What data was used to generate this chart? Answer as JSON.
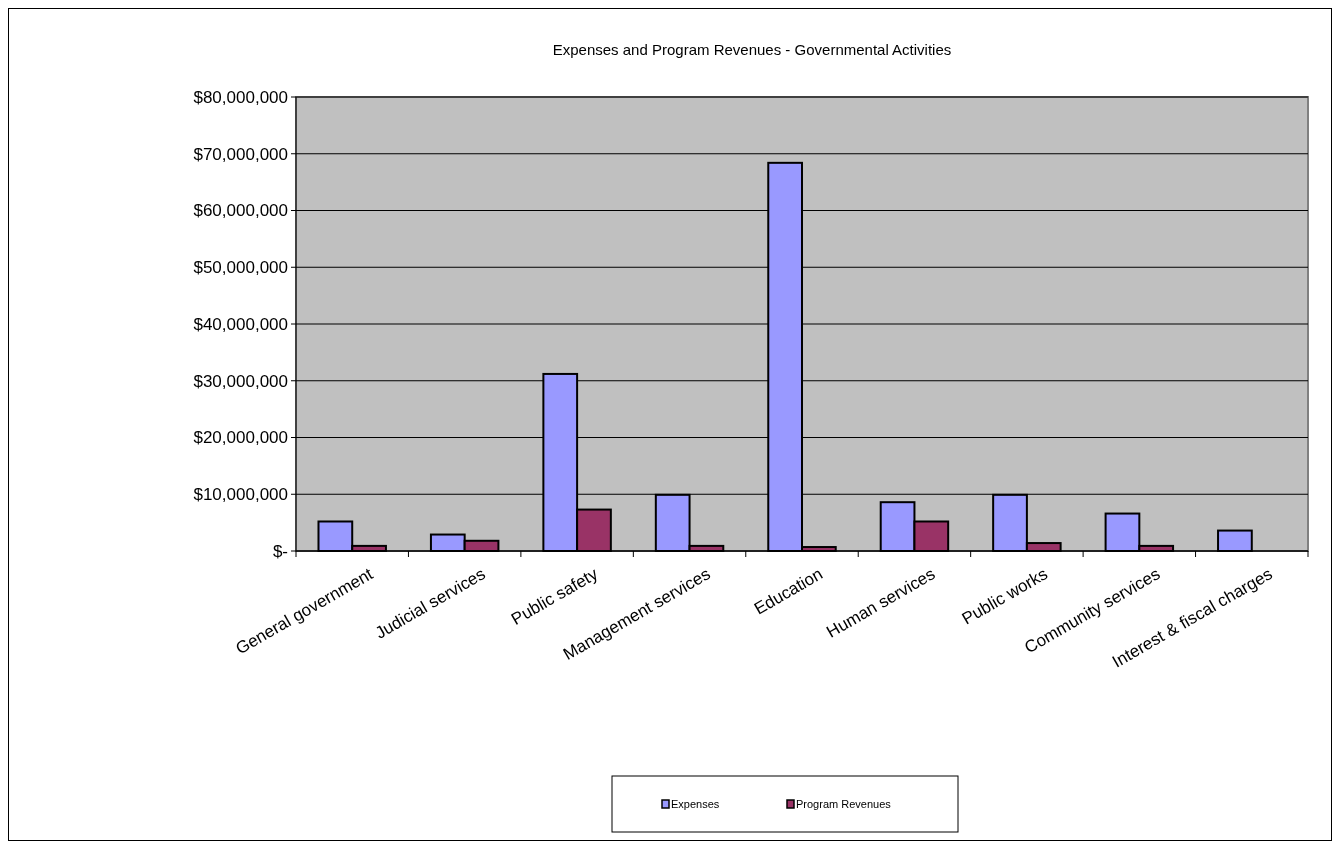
{
  "chart_data": {
    "type": "bar",
    "title": "Expenses and Program Revenues  - Governmental  Activities",
    "categories": [
      "General government",
      "Judicial services",
      "Public safety",
      "Management services",
      "Education",
      "Human services",
      "Public works",
      "Community services",
      "Interest & fiscal charges"
    ],
    "series": [
      {
        "name": "Expenses",
        "color": "#9999ff",
        "values": [
          5200000,
          2900000,
          31200000,
          9900000,
          68400000,
          8600000,
          9900000,
          6600000,
          3600000
        ]
      },
      {
        "name": "Program Revenues",
        "color": "#993366",
        "values": [
          900000,
          1800000,
          7300000,
          900000,
          700000,
          5200000,
          1400000,
          900000,
          null
        ]
      }
    ],
    "ylim": [
      0,
      80000000
    ],
    "yticks": [
      {
        "value": 0,
        "label": "$-"
      },
      {
        "value": 10000000,
        "label": "$10,000,000"
      },
      {
        "value": 20000000,
        "label": "$20,000,000"
      },
      {
        "value": 30000000,
        "label": "$30,000,000"
      },
      {
        "value": 40000000,
        "label": "$40,000,000"
      },
      {
        "value": 50000000,
        "label": "$50,000,000"
      },
      {
        "value": 60000000,
        "label": "$60,000,000"
      },
      {
        "value": 70000000,
        "label": "$70,000,000"
      },
      {
        "value": 80000000,
        "label": "$80,000,000"
      }
    ],
    "grid": "y",
    "legend": "bottom"
  }
}
